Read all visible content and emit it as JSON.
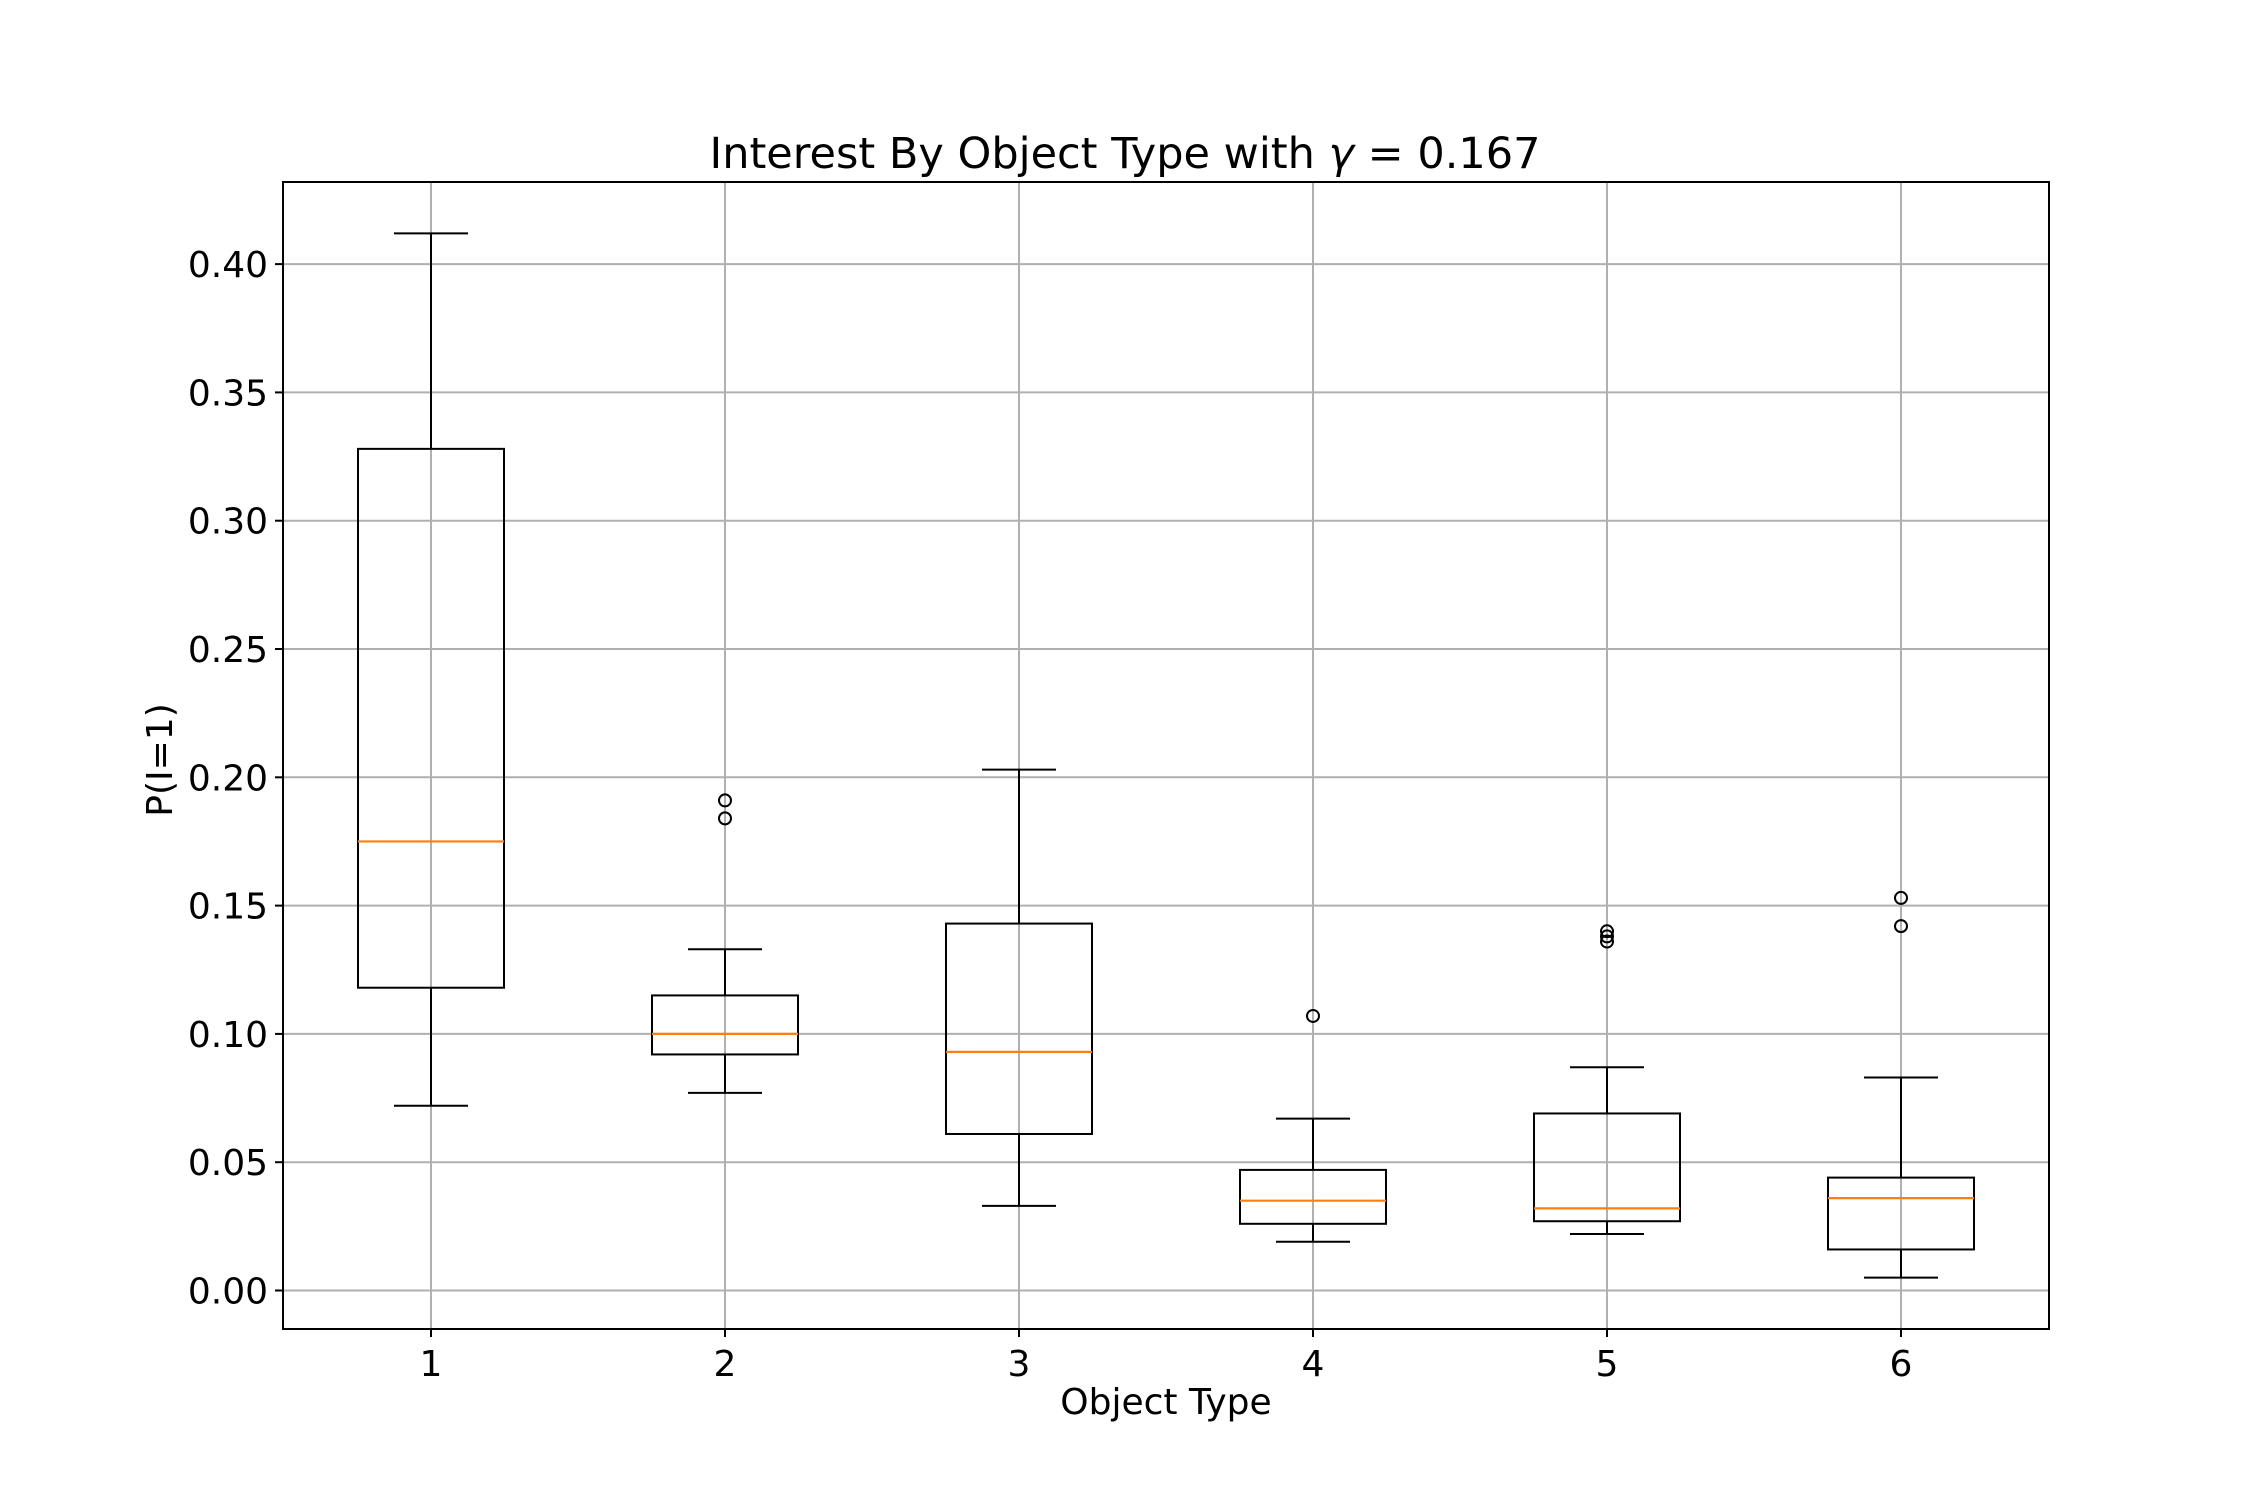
{
  "chart_data": {
    "type": "boxplot",
    "title_prefix": "Interest By Object Type with ",
    "title_symbol": "γ",
    "title_suffix": " = 0.167",
    "xlabel": "Object Type",
    "ylabel": "P(I=1)",
    "ylim": [
      -0.015,
      0.432
    ],
    "yticks": [
      "0.00",
      "0.05",
      "0.10",
      "0.15",
      "0.20",
      "0.25",
      "0.30",
      "0.35",
      "0.40"
    ],
    "grid": true,
    "colors": {
      "box": "#000000",
      "median": "#ff7f0e",
      "grid": "#b0b0b0"
    },
    "categories": [
      "1",
      "2",
      "3",
      "4",
      "5",
      "6"
    ],
    "boxes": [
      {
        "category": "1",
        "whisker_low": 0.072,
        "q1": 0.118,
        "median": 0.175,
        "q3": 0.328,
        "whisker_high": 0.412,
        "outliers": []
      },
      {
        "category": "2",
        "whisker_low": 0.077,
        "q1": 0.092,
        "median": 0.1,
        "q3": 0.115,
        "whisker_high": 0.133,
        "outliers": [
          0.184,
          0.191
        ]
      },
      {
        "category": "3",
        "whisker_low": 0.033,
        "q1": 0.061,
        "median": 0.093,
        "q3": 0.143,
        "whisker_high": 0.203,
        "outliers": []
      },
      {
        "category": "4",
        "whisker_low": 0.019,
        "q1": 0.026,
        "median": 0.035,
        "q3": 0.047,
        "whisker_high": 0.067,
        "outliers": [
          0.107
        ]
      },
      {
        "category": "5",
        "whisker_low": 0.022,
        "q1": 0.027,
        "median": 0.032,
        "q3": 0.069,
        "whisker_high": 0.087,
        "outliers": [
          0.136,
          0.138,
          0.14
        ]
      },
      {
        "category": "6",
        "whisker_low": 0.005,
        "q1": 0.016,
        "median": 0.036,
        "q3": 0.044,
        "whisker_high": 0.083,
        "outliers": [
          0.142,
          0.153
        ]
      }
    ]
  }
}
